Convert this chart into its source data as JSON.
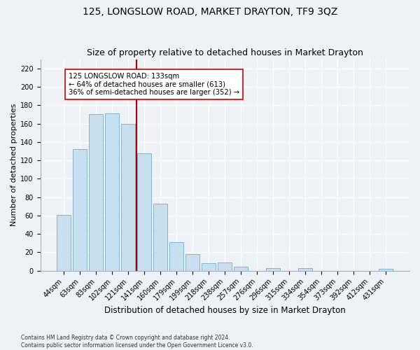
{
  "title": "125, LONGSLOW ROAD, MARKET DRAYTON, TF9 3QZ",
  "subtitle": "Size of property relative to detached houses in Market Drayton",
  "xlabel": "Distribution of detached houses by size in Market Drayton",
  "ylabel": "Number of detached properties",
  "bar_labels": [
    "44sqm",
    "63sqm",
    "83sqm",
    "102sqm",
    "121sqm",
    "141sqm",
    "160sqm",
    "179sqm",
    "199sqm",
    "218sqm",
    "238sqm",
    "257sqm",
    "276sqm",
    "296sqm",
    "315sqm",
    "334sqm",
    "354sqm",
    "373sqm",
    "392sqm",
    "412sqm",
    "431sqm"
  ],
  "bar_values": [
    61,
    132,
    170,
    171,
    160,
    128,
    73,
    31,
    18,
    8,
    9,
    4,
    0,
    3,
    0,
    3,
    0,
    0,
    0,
    0,
    2
  ],
  "bar_color": "#c8dff0",
  "bar_edge_color": "#7ab8d9",
  "ylim": [
    0,
    230
  ],
  "yticks": [
    0,
    20,
    40,
    60,
    80,
    100,
    120,
    140,
    160,
    180,
    200,
    220
  ],
  "property_line_x": 4.5,
  "property_line_color": "#aa0000",
  "annotation_title": "125 LONGSLOW ROAD: 133sqm",
  "annotation_line1": "← 64% of detached houses are smaller (613)",
  "annotation_line2": "36% of semi-detached houses are larger (352) →",
  "annotation_box_color": "#ffffff",
  "annotation_box_edge": "#cc0000",
  "footnote1": "Contains HM Land Registry data © Crown copyright and database right 2024.",
  "footnote2": "Contains public sector information licensed under the Open Government Licence v3.0.",
  "background_color": "#eef2f7",
  "title_fontsize": 10,
  "subtitle_fontsize": 9,
  "xlabel_fontsize": 8.5,
  "ylabel_fontsize": 8,
  "tick_fontsize": 7,
  "footnote_fontsize": 5.5
}
